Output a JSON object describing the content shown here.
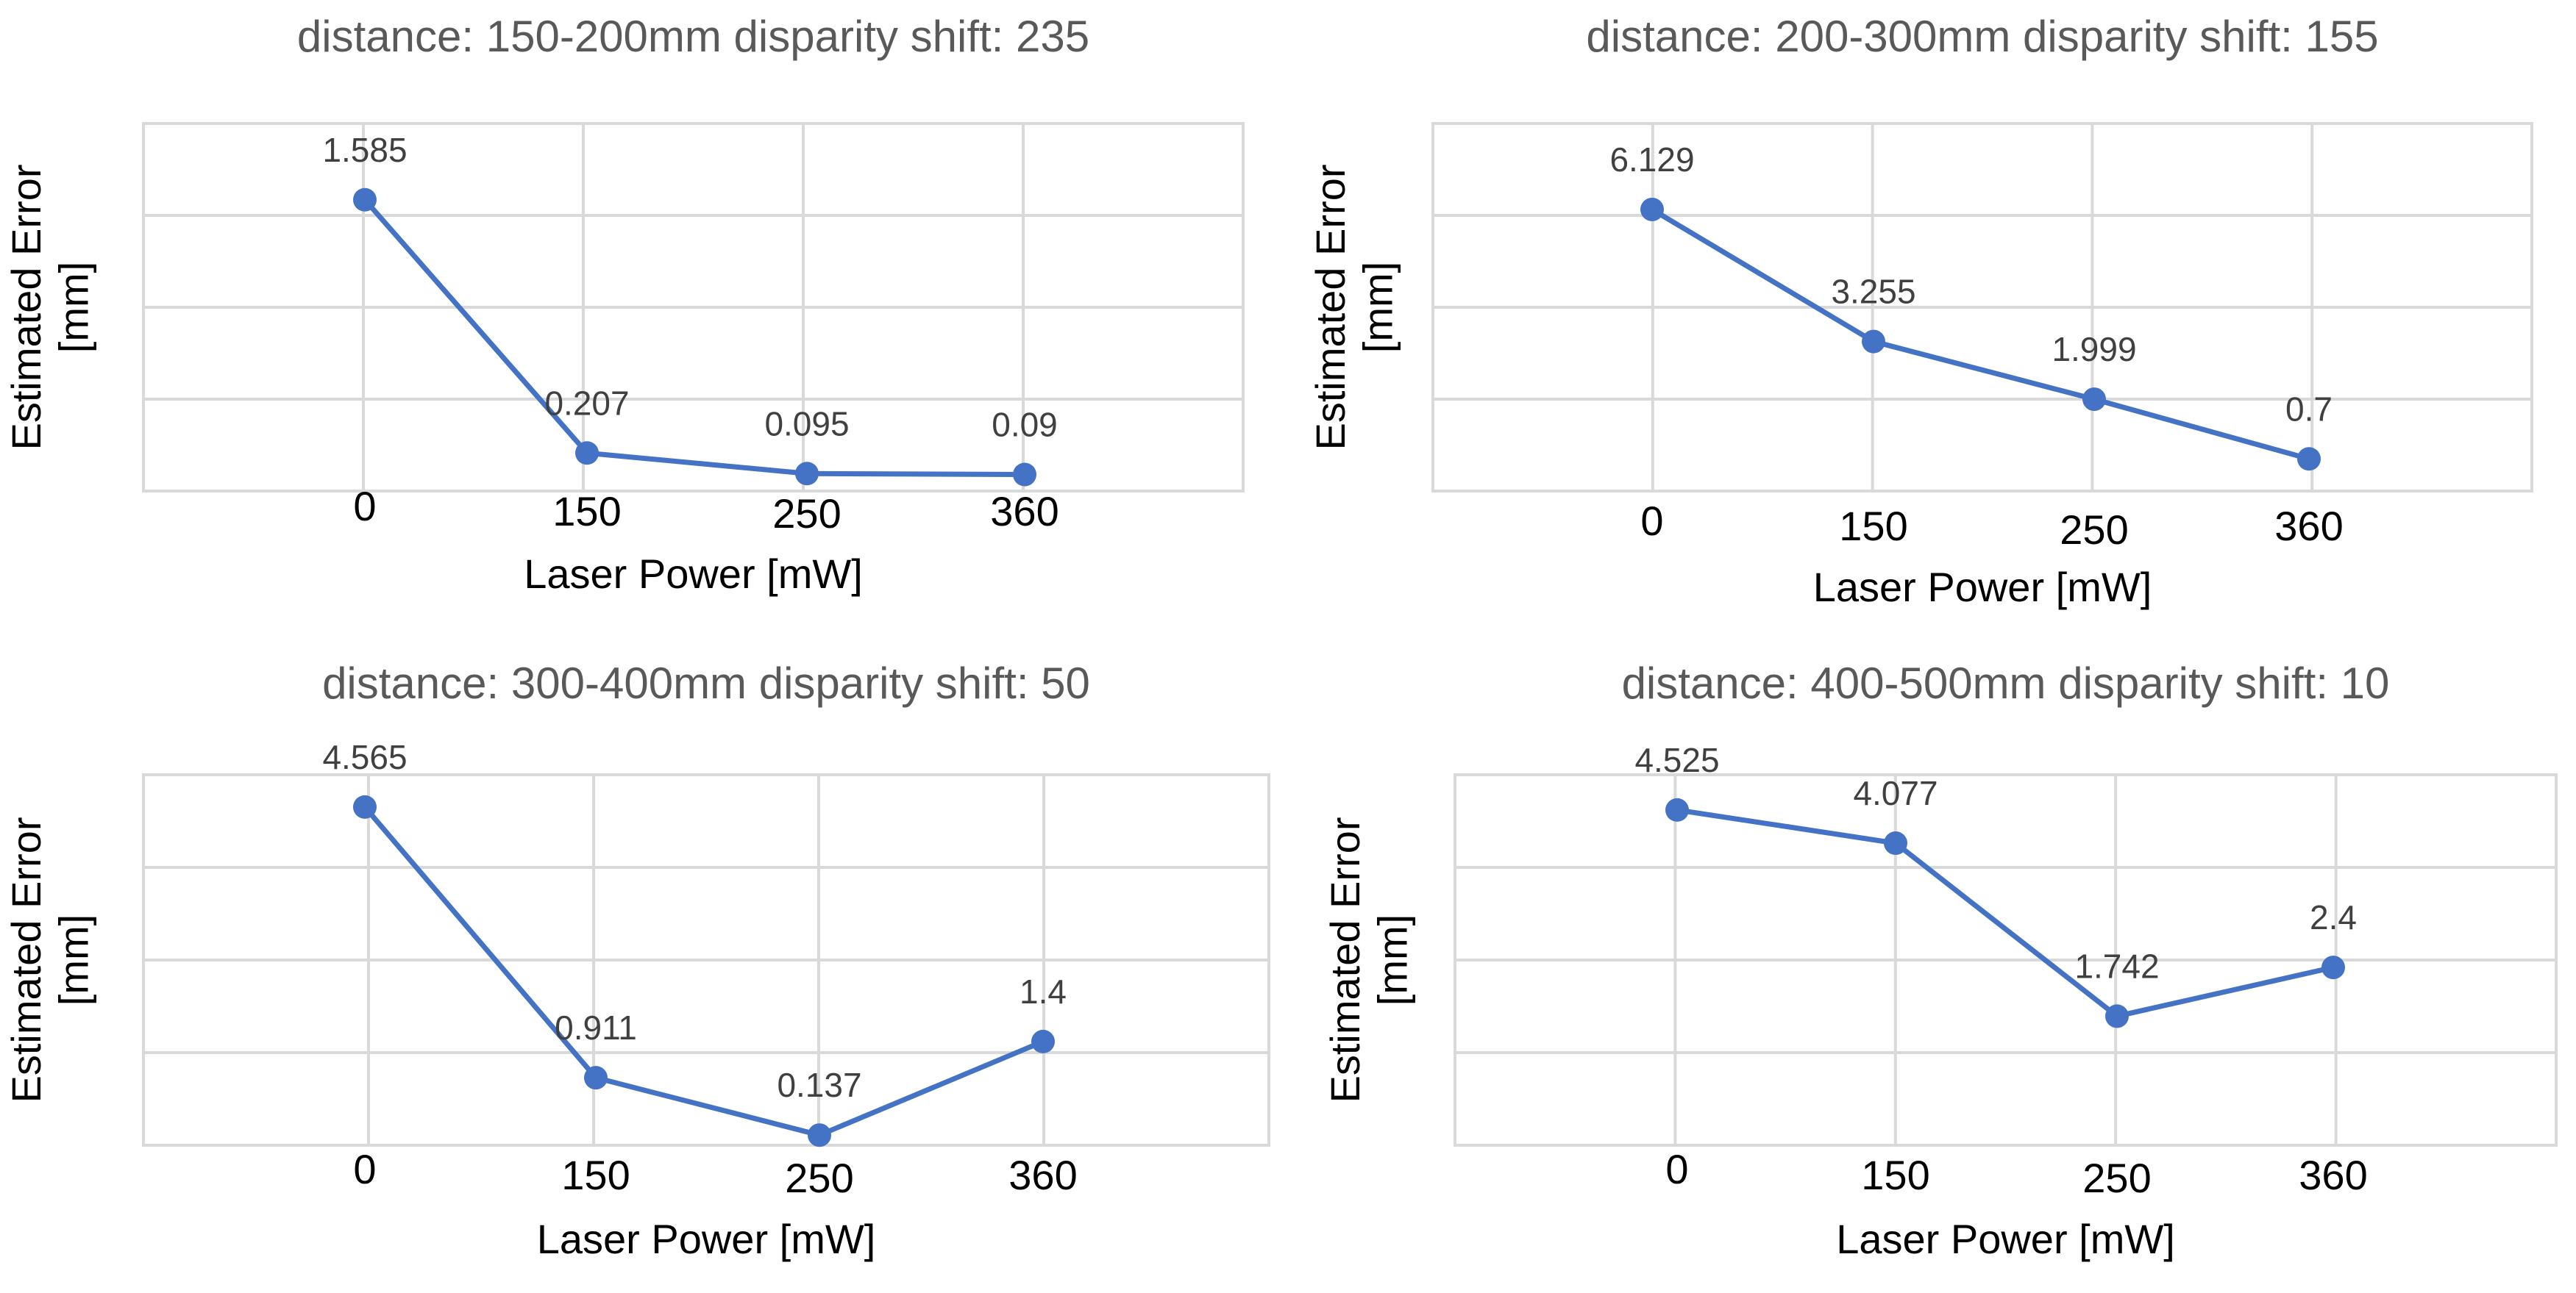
{
  "chart_data": [
    {
      "type": "line",
      "title": "distance: 150-200mm disparity shift: 235",
      "xlabel": "Laser Power [mW]",
      "ylabel_lines": [
        "Estimated Error",
        "[mm]"
      ],
      "categories": [
        "0",
        "150",
        "250",
        "360"
      ],
      "values": [
        1.585,
        0.207,
        0.095,
        0.09
      ],
      "data_labels": [
        "1.585",
        "0.207",
        "0.095",
        "0.09"
      ],
      "ylim": [
        0,
        2
      ],
      "grid": true,
      "series_color": "#4472c4"
    },
    {
      "type": "line",
      "title": "distance: 200-300mm disparity shift: 155",
      "xlabel": "Laser Power [mW]",
      "ylabel_lines": [
        "Estimated Error",
        "[mm]"
      ],
      "categories": [
        "0",
        "150",
        "250",
        "360"
      ],
      "values": [
        6.129,
        3.255,
        1.999,
        0.7
      ],
      "data_labels": [
        "6.129",
        "3.255",
        "1.999",
        "0.7"
      ],
      "ylim": [
        0,
        8
      ],
      "grid": true,
      "series_color": "#4472c4"
    },
    {
      "type": "line",
      "title": "distance: 300-400mm disparity shift: 50",
      "xlabel": "Laser Power [mW]",
      "ylabel_lines": [
        "Estimated Error",
        "[mm]"
      ],
      "categories": [
        "0",
        "150",
        "250",
        "360"
      ],
      "values": [
        4.565,
        0.911,
        0.137,
        1.4
      ],
      "data_labels": [
        "4.565",
        "0.911",
        "0.137",
        "1.4"
      ],
      "ylim": [
        0,
        5
      ],
      "grid": true,
      "series_color": "#4472c4"
    },
    {
      "type": "line",
      "title": "distance: 400-500mm disparity shift: 10",
      "xlabel": "Laser Power [mW]",
      "ylabel_lines": [
        "Estimated Error",
        "[mm]"
      ],
      "categories": [
        "0",
        "150",
        "250",
        "360"
      ],
      "values": [
        4.525,
        4.077,
        1.742,
        2.4
      ],
      "data_labels": [
        "4.525",
        "4.077",
        "1.742",
        "2.4"
      ],
      "ylim": [
        0,
        5
      ],
      "grid": true,
      "series_color": "#4472c4"
    }
  ]
}
